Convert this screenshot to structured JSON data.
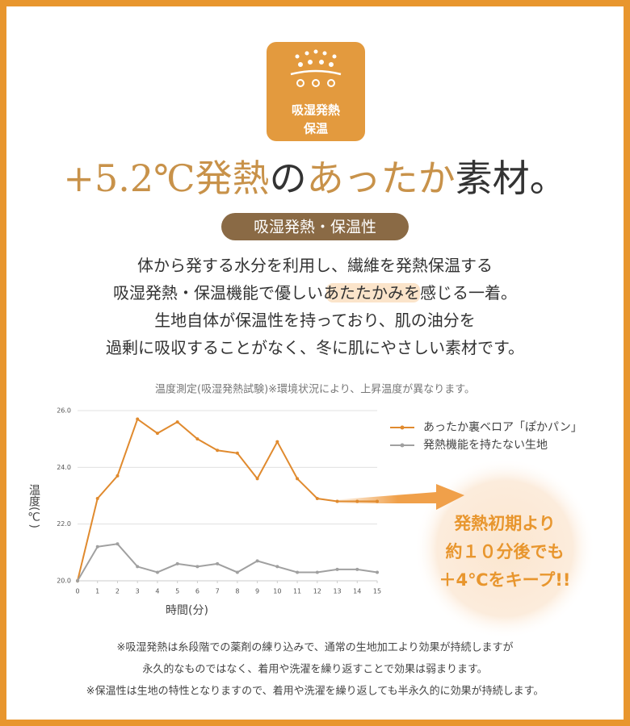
{
  "badge": {
    "lines": [
      "吸湿発熱",
      "保温"
    ]
  },
  "headline": {
    "parts": [
      "+5.2℃発熱",
      "の",
      "あったか",
      "素材。"
    ]
  },
  "pill": "吸湿発熱・保温性",
  "body": {
    "lines": [
      [
        "体から発する水分を利用し、繊維を発熱保温する"
      ],
      [
        "吸湿発熱・保温機能で優しい",
        "あたたかみ",
        "を感じる一着。"
      ],
      [
        "生地自体が保温性を持っており、肌の油分を"
      ],
      [
        "過剰に吸収することがなく、冬に肌にやさしい素材です。"
      ]
    ]
  },
  "caption": "温度測定(吸湿発熱試験)※環境状況により、上昇温度が異なります。",
  "chart_data": {
    "type": "line",
    "x_label": "時間(分)",
    "y_label": "温度(℃)",
    "x": [
      0,
      1,
      2,
      3,
      4,
      5,
      6,
      7,
      8,
      9,
      10,
      11,
      12,
      13,
      14,
      15
    ],
    "xlim": [
      0,
      15
    ],
    "xticks": [
      0,
      1,
      2,
      3,
      4,
      5,
      6,
      7,
      8,
      9,
      10,
      11,
      12,
      13,
      14,
      15
    ],
    "ylim": [
      20,
      26
    ],
    "yticks": [
      {
        "value": 20,
        "label": "20.0"
      },
      {
        "value": 22,
        "label": "22.0"
      },
      {
        "value": 24,
        "label": "24.0"
      },
      {
        "value": 26,
        "label": "26.0"
      }
    ],
    "grid": true,
    "legend": "right",
    "series": [
      {
        "name": "あったか裏ベロア「ぽかパン」",
        "color": "#e08a2e",
        "values": [
          20.0,
          22.9,
          23.7,
          25.7,
          25.2,
          25.6,
          25.0,
          24.6,
          24.5,
          23.6,
          24.9,
          23.6,
          22.9,
          22.8,
          22.8,
          22.8
        ]
      },
      {
        "name": "発熱機能を持たない生地",
        "color": "#a0a0a0",
        "values": [
          20.0,
          21.2,
          21.3,
          20.5,
          20.3,
          20.6,
          20.5,
          20.6,
          20.3,
          20.7,
          20.5,
          20.3,
          20.3,
          20.4,
          20.4,
          20.3
        ]
      }
    ]
  },
  "callout": {
    "lines": [
      "発熱初期より",
      "約１０分後でも",
      "＋4℃をキープ!!"
    ]
  },
  "notes": [
    "※吸湿発熱は糸段階での薬剤の練り込みで、通常の生地加工より効果が持続しますが",
    "永久的なものではなく、着用や洗濯を繰り返すことで効果は弱まります。",
    "※保温性は生地の特性となりますので、着用や洗濯を繰り返しても半永久的に効果が持続します。"
  ]
}
